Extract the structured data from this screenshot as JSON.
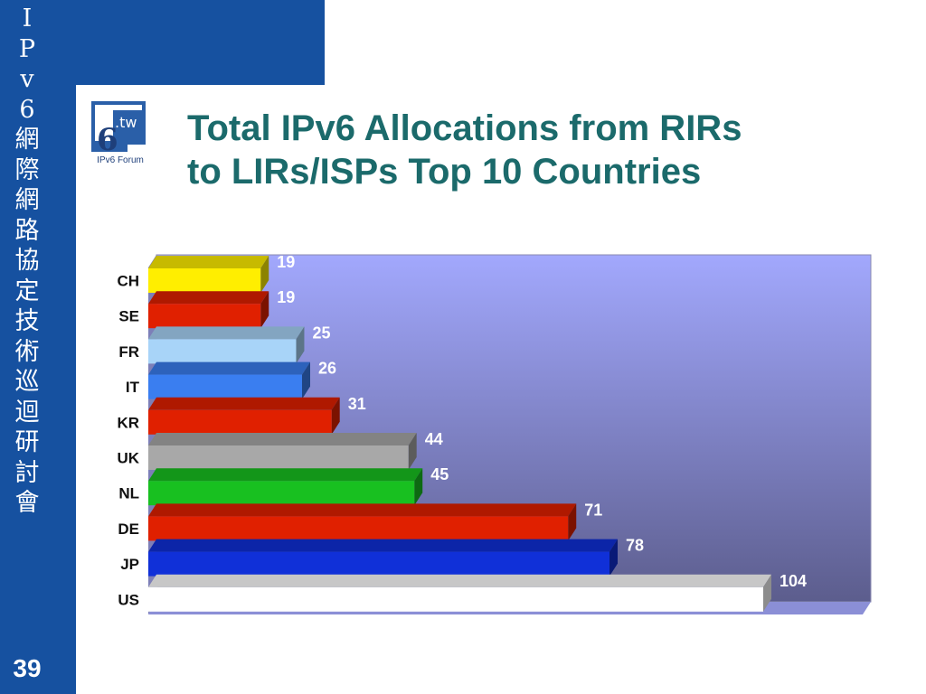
{
  "slide": {
    "title_line1": "Total IPv6 Allocations from RIRs",
    "title_line2": "to LIRs/ISPs Top 10 Countries",
    "page_number": "39",
    "sidebar_chars": [
      "I",
      "P",
      "v",
      "6",
      "網",
      "際",
      "網",
      "路",
      "協",
      "定",
      "技",
      "術",
      "巡",
      "迴",
      "研",
      "討",
      "會"
    ],
    "logo": {
      "text": ".tw",
      "numeral": "6",
      "caption": "IPv6 Forum"
    }
  },
  "colors": {
    "sidebar": "#1651a0",
    "title": "#1b6a6b",
    "plot_top": "#a2a8fd",
    "plot_bottom": "#5c5d8d"
  },
  "chart_data": {
    "type": "bar",
    "orientation": "horizontal",
    "title": "",
    "xlabel": "",
    "ylabel": "",
    "categories": [
      "CH",
      "SE",
      "FR",
      "IT",
      "KR",
      "UK",
      "NL",
      "DE",
      "JP",
      "US"
    ],
    "values": [
      19,
      19,
      25,
      26,
      31,
      44,
      45,
      71,
      78,
      104
    ],
    "bar_colors": [
      "#ffee00",
      "#e02000",
      "#a8d4f8",
      "#3a7ef0",
      "#e02000",
      "#a8a8a8",
      "#18c020",
      "#e02000",
      "#1030d8",
      "#ffffff"
    ],
    "xlim": [
      0,
      114
    ],
    "grid": false,
    "legend": "none",
    "data_labels": true,
    "style": "3d"
  }
}
